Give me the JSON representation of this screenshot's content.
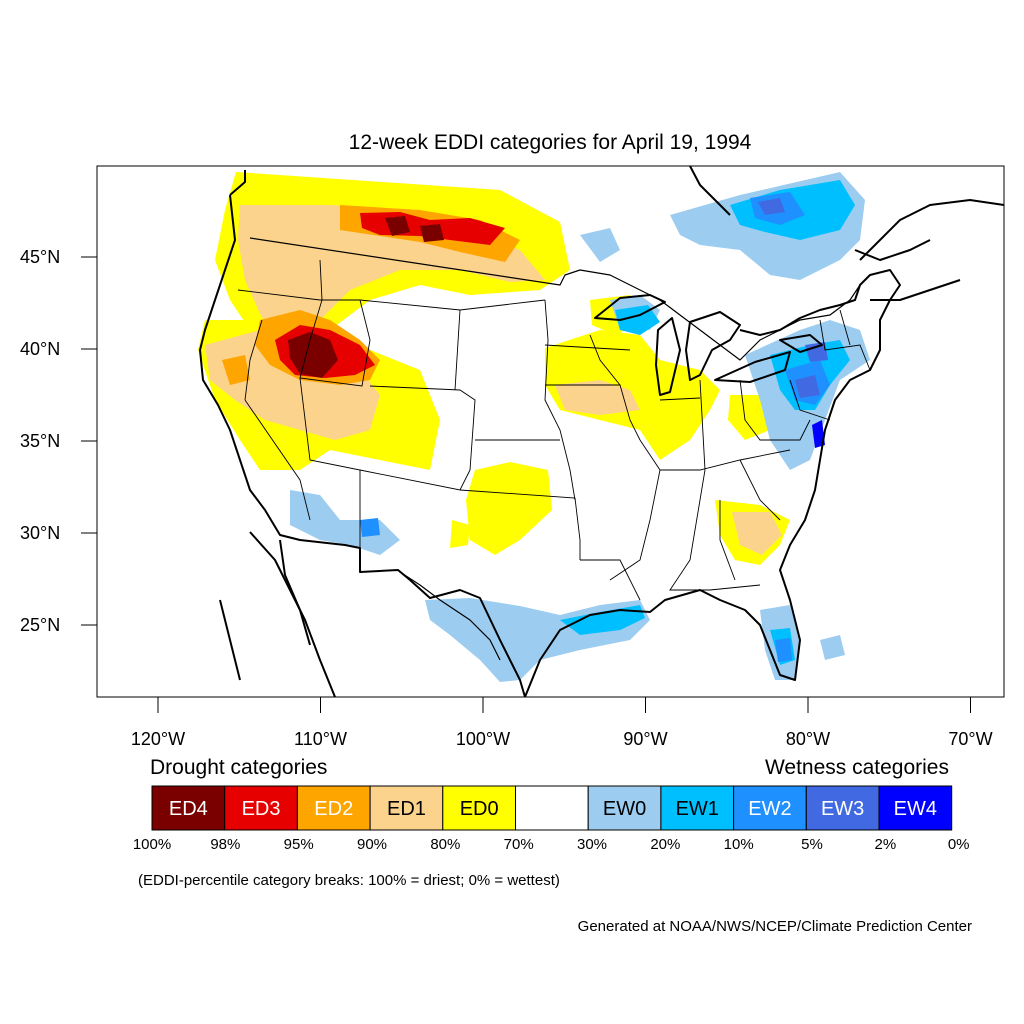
{
  "title": "12-week EDDI categories for April 19, 1994",
  "map": {
    "lon_range": [
      -124.3,
      -68.4
    ],
    "lat_range": [
      21.0,
      49.7
    ],
    "lat_ticks": [
      {
        "value": 45,
        "label": "45°N"
      },
      {
        "value": 40,
        "label": "40°N"
      },
      {
        "value": 35,
        "label": "35°N"
      },
      {
        "value": 30,
        "label": "30°N"
      },
      {
        "value": 25,
        "label": "25°N"
      }
    ],
    "lon_ticks": [
      {
        "value": -120,
        "label": "120°W"
      },
      {
        "value": -110,
        "label": "110°W"
      },
      {
        "value": -100,
        "label": "100°W"
      },
      {
        "value": -90,
        "label": "90°W"
      },
      {
        "value": -80,
        "label": "80°W"
      },
      {
        "value": -70,
        "label": "70°W"
      }
    ]
  },
  "legend": {
    "drought_heading": "Drought categories",
    "wetness_heading": "Wetness categories",
    "categories": [
      {
        "label": "ED4",
        "color": "#7a0000",
        "text_color": "#ffffff"
      },
      {
        "label": "ED3",
        "color": "#e60000",
        "text_color": "#ffffff"
      },
      {
        "label": "ED2",
        "color": "#ffa500",
        "text_color": "#ffffff"
      },
      {
        "label": "ED1",
        "color": "#fcd38c",
        "text_color": "#000000"
      },
      {
        "label": "ED0",
        "color": "#ffff00",
        "text_color": "#000000"
      },
      {
        "label": "",
        "color": "#ffffff",
        "text_color": "#000000"
      },
      {
        "label": "EW0",
        "color": "#9ccdf0",
        "text_color": "#000000"
      },
      {
        "label": "EW1",
        "color": "#00bfff",
        "text_color": "#000000"
      },
      {
        "label": "EW2",
        "color": "#1e90ff",
        "text_color": "#ffffff"
      },
      {
        "label": "EW3",
        "color": "#4169e1",
        "text_color": "#ffffff"
      },
      {
        "label": "EW4",
        "color": "#0000ff",
        "text_color": "#ffffff"
      }
    ],
    "percent_breaks": [
      "100%",
      "98%",
      "95%",
      "90%",
      "80%",
      "70%",
      "30%",
      "20%",
      "10%",
      "5%",
      "2%",
      "0%"
    ]
  },
  "note": "(EDDI-percentile category breaks: 100% = driest; 0% = wettest)",
  "credit": "Generated at NOAA/NWS/NCEP/Climate Prediction Center"
}
